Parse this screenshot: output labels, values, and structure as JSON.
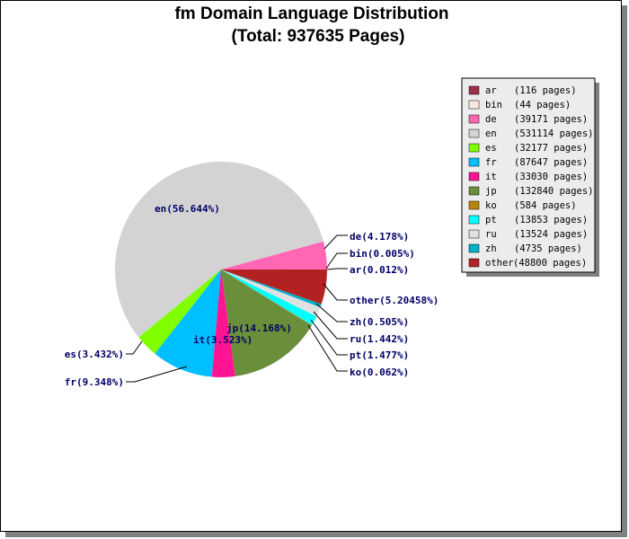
{
  "chart_data": {
    "type": "pie",
    "title": "fm Domain Language Distribution",
    "subtitle": "(Total: 937635 Pages)",
    "slices": [
      {
        "name": "ar",
        "pages": 116,
        "percent_label": "ar(0.012%)",
        "legend_count": "(116 pages)",
        "color": "#a0304a"
      },
      {
        "name": "bin",
        "pages": 44,
        "percent_label": "bin(0.005%)",
        "legend_count": "(44 pages)",
        "color": "#f8e8e0"
      },
      {
        "name": "de",
        "pages": 39171,
        "percent_label": "de(4.178%)",
        "legend_count": "(39171 pages)",
        "color": "#ff66b3"
      },
      {
        "name": "en",
        "pages": 531114,
        "percent_label": "en(56.644%)",
        "legend_count": "(531114 pages)",
        "color": "#d3d3d3"
      },
      {
        "name": "es",
        "pages": 32177,
        "percent_label": "es(3.432%)",
        "legend_count": "(32177 pages)",
        "color": "#80ff00"
      },
      {
        "name": "fr",
        "pages": 87647,
        "percent_label": "fr(9.348%)",
        "legend_count": "(87647 pages)",
        "color": "#00bfff"
      },
      {
        "name": "it",
        "pages": 33030,
        "percent_label": "it(3.523%)",
        "legend_count": "(33030 pages)",
        "color": "#ff1493"
      },
      {
        "name": "jp",
        "pages": 132840,
        "percent_label": "jp(14.168%)",
        "legend_count": "(132840 pages)",
        "color": "#6b8e3a"
      },
      {
        "name": "ko",
        "pages": 584,
        "percent_label": "ko(0.062%)",
        "legend_count": "(584 pages)",
        "color": "#b8860b"
      },
      {
        "name": "pt",
        "pages": 13853,
        "percent_label": "pt(1.477%)",
        "legend_count": "(13853 pages)",
        "color": "#00ffff"
      },
      {
        "name": "ru",
        "pages": 13524,
        "percent_label": "ru(1.442%)",
        "legend_count": "(13524 pages)",
        "color": "#e0e0e0"
      },
      {
        "name": "zh",
        "pages": 4735,
        "percent_label": "zh(0.505%)",
        "legend_count": "(4735 pages)",
        "color": "#00b0c8"
      },
      {
        "name": "other",
        "pages": 48800,
        "percent_label": "other(5.20458%)",
        "legend_count": "(48800 pages)",
        "color": "#b22222"
      }
    ],
    "legend_position": "top-right"
  }
}
